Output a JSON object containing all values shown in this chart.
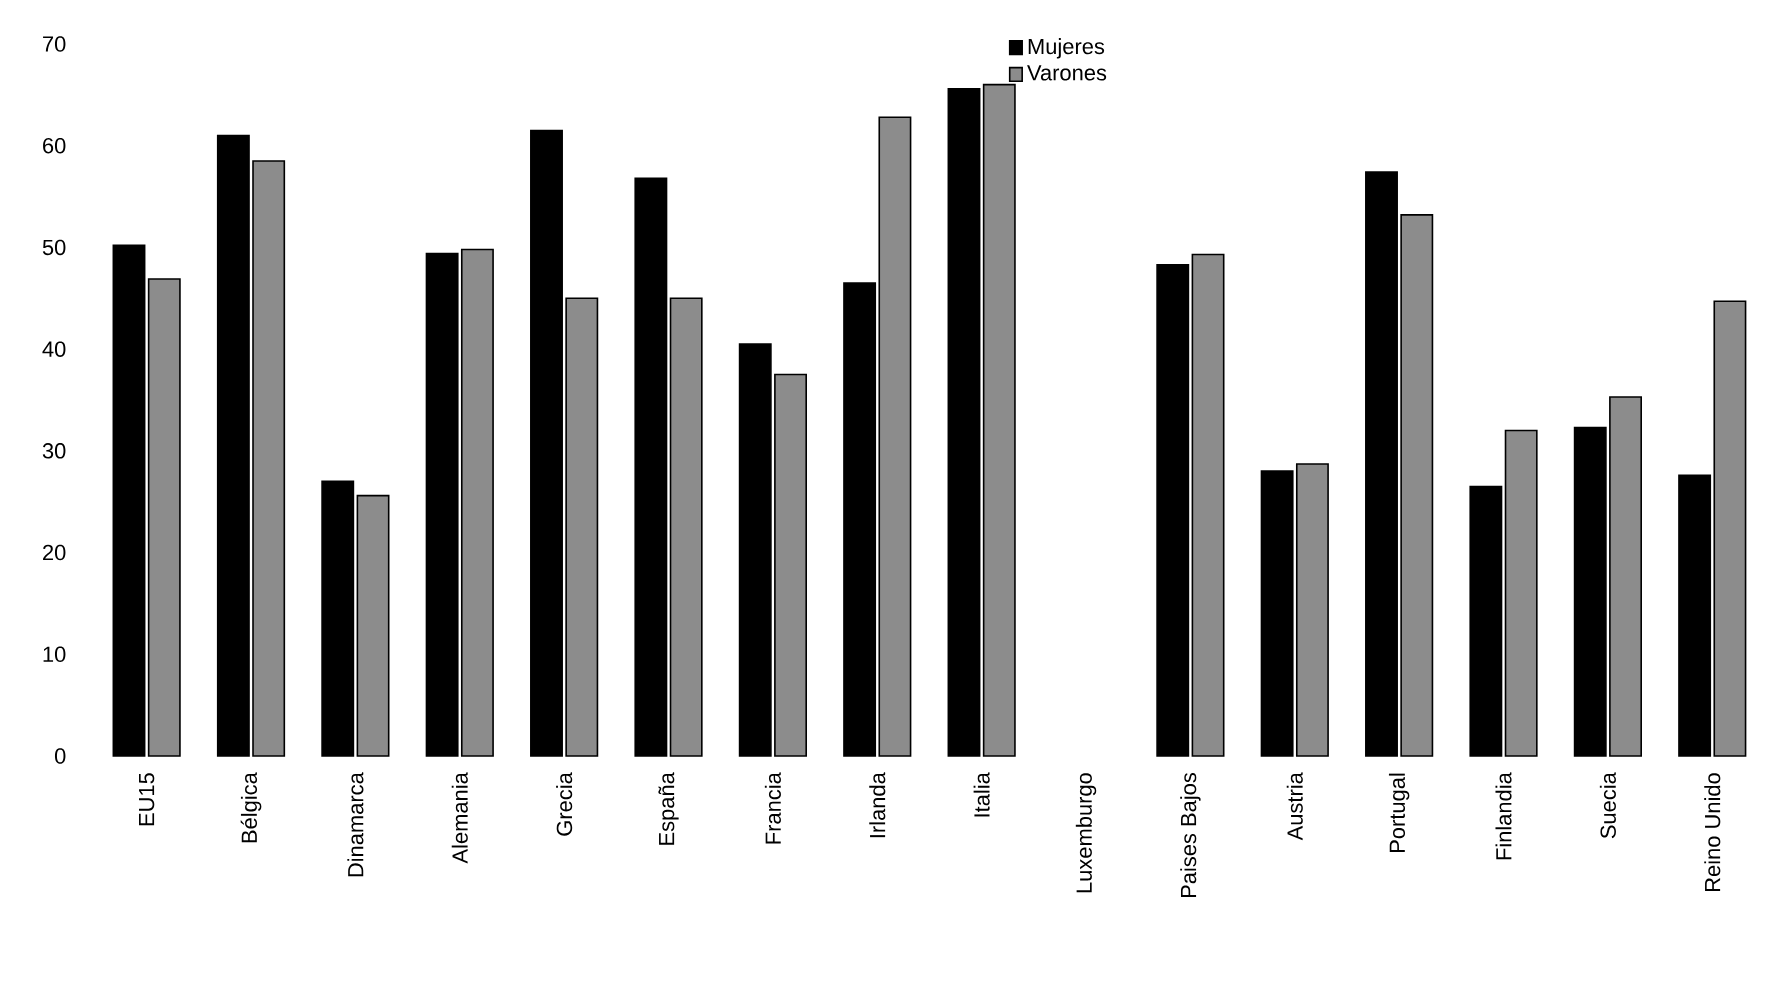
{
  "chart_data": {
    "type": "bar",
    "categories": [
      "EU15",
      "Bélgica",
      "Dinamarca",
      "Alemania",
      "Grecia",
      "España",
      "Francia",
      "Irlanda",
      "Italia",
      "Luxemburgo",
      "Paises Bajos",
      "Austria",
      "Portugal",
      "Finlandia",
      "Suecia",
      "Reino Unido"
    ],
    "series": [
      {
        "name": "Mujeres",
        "color": "#000000",
        "values": [
          50.2,
          61,
          27,
          49.4,
          61.5,
          56.8,
          40.5,
          46.5,
          65.6,
          null,
          48.3,
          28,
          57.4,
          26.5,
          32.3,
          27.6
        ]
      },
      {
        "name": "Varones",
        "color": "#8c8c8c",
        "values": [
          46.9,
          58.5,
          25.6,
          49.8,
          45,
          45,
          37.5,
          62.8,
          66,
          null,
          49.3,
          28.7,
          53.2,
          32,
          35.3,
          44.7
        ]
      }
    ],
    "ylim": [
      0,
      70
    ],
    "yticks": [
      0,
      10,
      20,
      30,
      40,
      50,
      60,
      70
    ],
    "legend": "top"
  }
}
